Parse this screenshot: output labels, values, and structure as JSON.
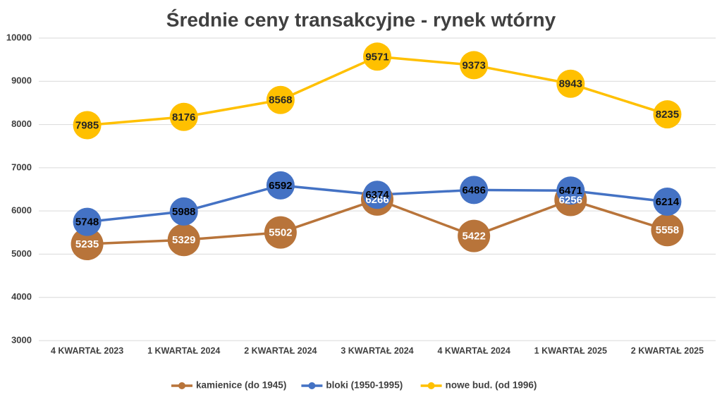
{
  "chart_data": {
    "type": "line",
    "title": "Średnie ceny transakcyjne - rynek wtórny",
    "categories": [
      "4 KWARTAŁ 2023",
      "1 KWARTAŁ 2024",
      "2 KWARTAŁ 2024",
      "3 KWARTAŁ 2024",
      "4 KWARTAŁ 2024",
      "1 KWARTAŁ 2025",
      "2 KWARTAŁ 2025"
    ],
    "series": [
      {
        "name": "kamienice (do 1945)",
        "color": "#B8743A",
        "label_color": "#ffffff",
        "values": [
          5235,
          5329,
          5502,
          6266,
          5422,
          6256,
          5558
        ]
      },
      {
        "name": "bloki (1950-1995)",
        "color": "#4472C4",
        "label_color": "#000000",
        "values": [
          5748,
          5988,
          6592,
          6374,
          6486,
          6471,
          6214
        ]
      },
      {
        "name": "nowe bud. (od 1996)",
        "color": "#FFC000",
        "label_color": "#262626",
        "values": [
          7985,
          8176,
          8568,
          9571,
          9373,
          8943,
          8235
        ]
      }
    ],
    "ylim": [
      3000,
      10000
    ],
    "yticks": [
      3000,
      4000,
      5000,
      6000,
      7000,
      8000,
      9000,
      10000
    ],
    "grid": true,
    "legend": "bottom"
  }
}
